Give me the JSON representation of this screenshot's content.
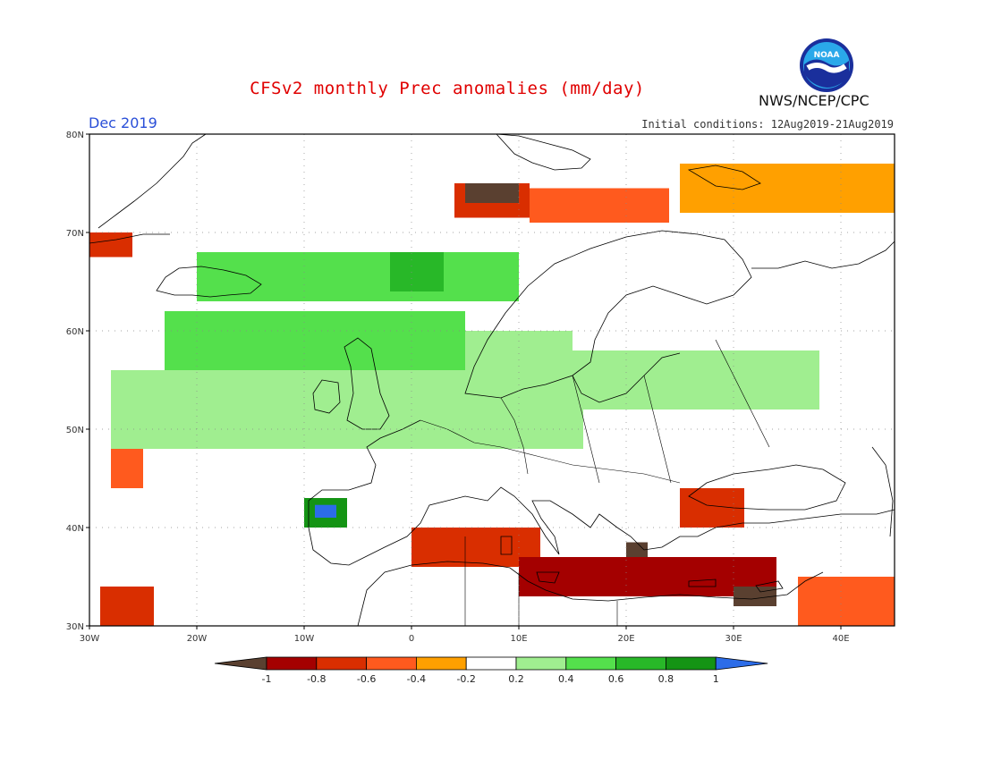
{
  "header": {
    "title": "CFSv2 monthly Prec anomalies (mm/day)",
    "month": "Dec 2019",
    "initial_conditions": "Initial conditions: 12Aug2019-21Aug2019",
    "agency": "NWS/NCEP/CPC",
    "logo_text": "NOAA"
  },
  "map": {
    "lon_range": [
      -30,
      45
    ],
    "lat_range": [
      30,
      80
    ],
    "lat_ticks": [
      "30N",
      "40N",
      "50N",
      "60N",
      "70N",
      "80N"
    ],
    "lon_ticks": [
      "30W",
      "20W",
      "10W",
      "0",
      "10E",
      "20E",
      "30E",
      "40E"
    ],
    "grid_lines": true,
    "regions": [
      {
        "lon": [
          4,
          11
        ],
        "lat": [
          71.5,
          75
        ],
        "class": "-0.6"
      },
      {
        "lon": [
          5,
          10
        ],
        "lat": [
          73,
          75
        ],
        "class": "-1"
      },
      {
        "lon": [
          11,
          24
        ],
        "lat": [
          71,
          74.5
        ],
        "class": "-0.4"
      },
      {
        "lon": [
          25,
          45
        ],
        "lat": [
          72,
          77
        ],
        "class": "-0.2"
      },
      {
        "lon": [
          -30,
          -26
        ],
        "lat": [
          67.5,
          70
        ],
        "class": "-0.6"
      },
      {
        "lon": [
          -20,
          10
        ],
        "lat": [
          63,
          68
        ],
        "class": "0.4"
      },
      {
        "lon": [
          -2,
          3
        ],
        "lat": [
          64,
          68
        ],
        "class": "0.6"
      },
      {
        "lon": [
          -23,
          5
        ],
        "lat": [
          56,
          62
        ],
        "class": "0.4"
      },
      {
        "lon": [
          -28,
          16
        ],
        "lat": [
          48,
          56
        ],
        "class": "0.3"
      },
      {
        "lon": [
          -10,
          -6
        ],
        "lat": [
          40,
          43
        ],
        "class": "0.8"
      },
      {
        "lon": [
          -9,
          -7
        ],
        "lat": [
          41,
          42.3
        ],
        "class": "1"
      },
      {
        "lon": [
          5,
          15
        ],
        "lat": [
          55,
          60
        ],
        "class": "0.3"
      },
      {
        "lon": [
          15,
          38
        ],
        "lat": [
          52,
          58
        ],
        "class": "0.3"
      },
      {
        "lon": [
          0,
          12
        ],
        "lat": [
          36,
          40
        ],
        "class": "-0.6"
      },
      {
        "lon": [
          10,
          34
        ],
        "lat": [
          33,
          37
        ],
        "class": "-0.8"
      },
      {
        "lon": [
          20,
          22
        ],
        "lat": [
          37,
          38.5
        ],
        "class": "-1"
      },
      {
        "lon": [
          30,
          34
        ],
        "lat": [
          32,
          34
        ],
        "class": "-1"
      },
      {
        "lon": [
          25,
          31
        ],
        "lat": [
          40,
          44
        ],
        "class": "-0.6"
      },
      {
        "lon": [
          -29,
          -24
        ],
        "lat": [
          30,
          34
        ],
        "class": "-0.6"
      },
      {
        "lon": [
          36,
          45
        ],
        "lat": [
          30,
          35
        ],
        "class": "-0.3"
      },
      {
        "lon": [
          -28,
          -25
        ],
        "lat": [
          44,
          48
        ],
        "class": "-0.4"
      }
    ]
  },
  "colorbar": {
    "labels": [
      "-1",
      "-0.8",
      "-0.6",
      "-0.4",
      "-0.2",
      "0.2",
      "0.4",
      "0.6",
      "0.8",
      "1"
    ],
    "colors": [
      "#5a4030",
      "#a40000",
      "#d92e00",
      "#ff5a1e",
      "#ffa000",
      "#ffffff",
      "#a0ee90",
      "#54e04c",
      "#28b828",
      "#149414",
      "#2c6ce8"
    ]
  },
  "colors": {
    "title": "#e00000",
    "month": "#2a4fd8",
    "coastline": "#000000",
    "grid": "#888888"
  }
}
